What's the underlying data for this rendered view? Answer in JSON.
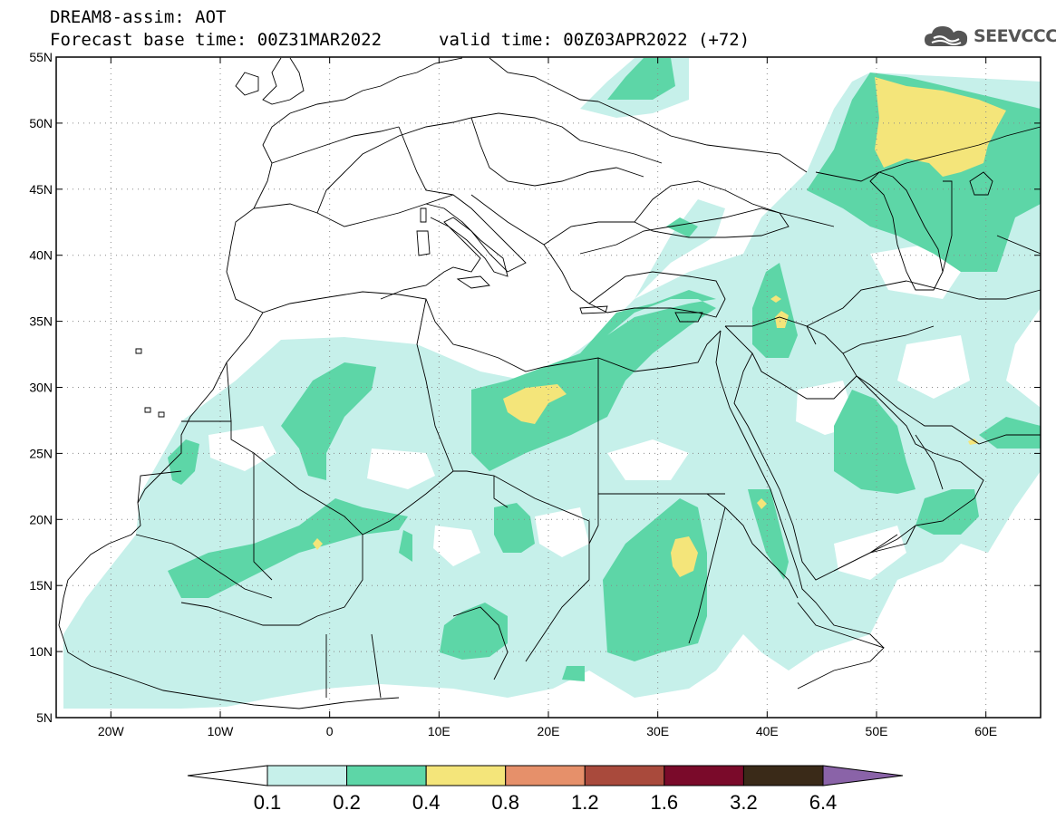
{
  "header": {
    "line1": "DREAM8-assim: AOT",
    "line2": "Forecast base time: 00Z31MAR2022",
    "valid": "valid time: 00Z03APR2022 (+72)"
  },
  "logo": {
    "text": "SEEVCCC",
    "icon": "cloud-icon",
    "color": "#555555"
  },
  "map": {
    "lon_range": [
      -25,
      65
    ],
    "lat_range": [
      5,
      55
    ],
    "grid": "dotted",
    "y_ticks": [
      {
        "lat": 55,
        "label": "55N"
      },
      {
        "lat": 50,
        "label": "50N"
      },
      {
        "lat": 45,
        "label": "45N"
      },
      {
        "lat": 40,
        "label": "40N"
      },
      {
        "lat": 35,
        "label": "35N"
      },
      {
        "lat": 30,
        "label": "30N"
      },
      {
        "lat": 25,
        "label": "25N"
      },
      {
        "lat": 20,
        "label": "20N"
      },
      {
        "lat": 15,
        "label": "15N"
      },
      {
        "lat": 10,
        "label": "10N"
      },
      {
        "lat": 5,
        "label": "5N"
      }
    ],
    "x_ticks": [
      {
        "lon": -20,
        "label": "20W"
      },
      {
        "lon": -10,
        "label": "10W"
      },
      {
        "lon": 0,
        "label": "0"
      },
      {
        "lon": 10,
        "label": "10E"
      },
      {
        "lon": 20,
        "label": "20E"
      },
      {
        "lon": 30,
        "label": "30E"
      },
      {
        "lon": 40,
        "label": "40E"
      },
      {
        "lon": 50,
        "label": "50E"
      },
      {
        "lon": 60,
        "label": "60E"
      }
    ]
  },
  "colorbar": {
    "levels": [
      "0.1",
      "0.2",
      "0.4",
      "0.8",
      "1.2",
      "1.6",
      "3.2",
      "6.4"
    ],
    "colors": [
      "#ffffff",
      "#c6f0ea",
      "#5dd6a7",
      "#f4e57a",
      "#e6906a",
      "#a94a3c",
      "#7a0a2a",
      "#3a2a18",
      "#8a63a8"
    ]
  }
}
